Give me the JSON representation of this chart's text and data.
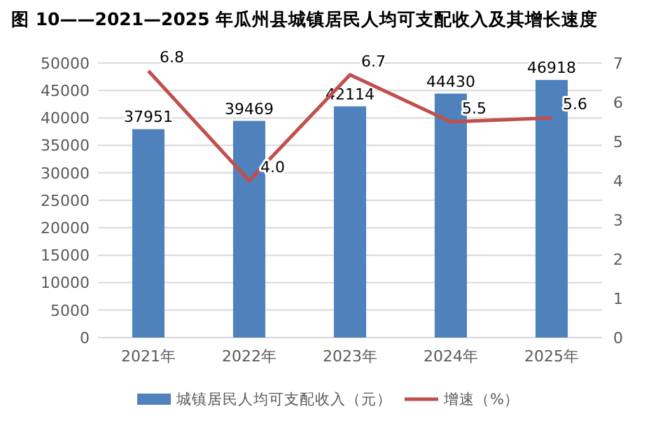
{
  "chart_data": {
    "type": "bar",
    "title": "图 10——2021—2025 年瓜州县城镇居民人均可支配收入及其增长速度",
    "categories": [
      "2021年",
      "2022年",
      "2023年",
      "2024年",
      "2025年"
    ],
    "series": [
      {
        "name": "城镇居民人均可支配收入（元）",
        "color": "#4f81bd",
        "values": [
          37951,
          39469,
          42114,
          44430,
          46918
        ]
      },
      {
        "name": "增速（%）",
        "type": "line",
        "axis": "y2",
        "color": "#c0504d",
        "values": [
          6.8,
          4.0,
          6.7,
          5.5,
          5.6
        ],
        "value_labels": [
          "6.8",
          "4.0",
          "6.7",
          "5.5",
          "5.6"
        ]
      }
    ],
    "ylim": [
      0,
      50000
    ],
    "yticks": [
      0,
      5000,
      10000,
      15000,
      20000,
      25000,
      30000,
      35000,
      40000,
      45000,
      50000
    ],
    "y2lim": [
      0,
      7
    ],
    "y2ticks": [
      0,
      1,
      2,
      3,
      4,
      5,
      6,
      7
    ],
    "grid": "y",
    "legend": "bottom",
    "data_labels": true,
    "marker": "none",
    "line_style": "solid"
  }
}
